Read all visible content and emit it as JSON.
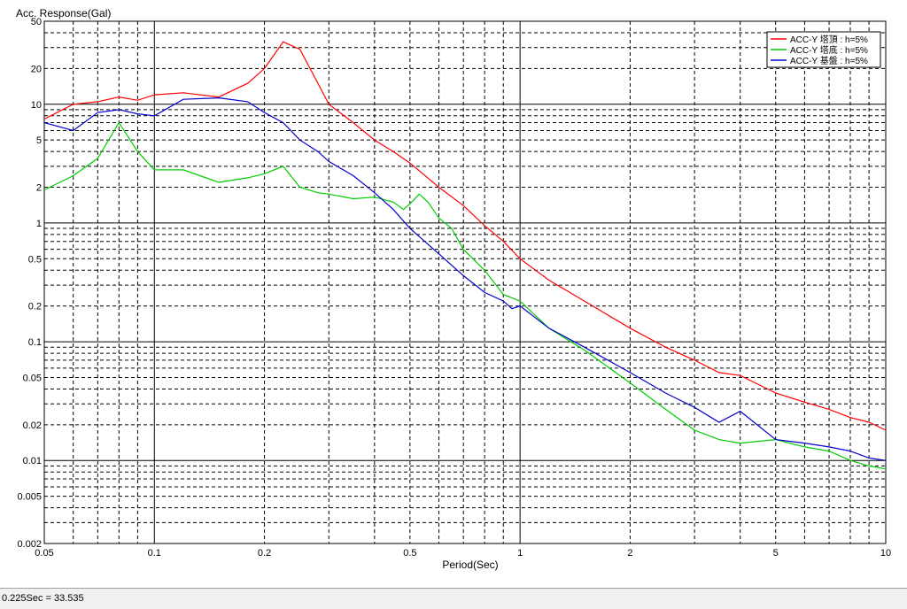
{
  "status_bar": {
    "readout": "0.225Sec = 33.535"
  },
  "chart_data": {
    "type": "line",
    "ylabel": "Acc. Response(Gal)",
    "xlabel": "Period(Sec)",
    "x_scale": "log",
    "y_scale": "log",
    "xlim": [
      0.05,
      10
    ],
    "ylim": [
      0.002,
      50
    ],
    "grid": true,
    "legend_position": "top-right",
    "x_ticks": [
      0.05,
      0.1,
      0.2,
      0.5,
      1,
      2,
      5,
      10
    ],
    "x_tick_labels": [
      "0.05",
      "0.1",
      "0.2",
      "0.5",
      "1",
      "2",
      "5",
      "10"
    ],
    "y_ticks": [
      0.002,
      0.005,
      0.01,
      0.02,
      0.05,
      0.1,
      0.2,
      0.5,
      1,
      2,
      5,
      10,
      20,
      50
    ],
    "y_tick_labels": [
      "0.002",
      "0.005",
      "0.01",
      "0.02",
      "0.05",
      "0.1",
      "0.2",
      "0.5",
      "1",
      "2",
      "5",
      "10",
      "20",
      "50"
    ],
    "series": [
      {
        "name": "ACC-Y 塔頂 : h=5%",
        "color": "#ff0000",
        "x": [
          0.05,
          0.06,
          0.07,
          0.08,
          0.09,
          0.1,
          0.12,
          0.15,
          0.18,
          0.2,
          0.225,
          0.25,
          0.28,
          0.3,
          0.35,
          0.4,
          0.45,
          0.5,
          0.6,
          0.7,
          0.8,
          0.9,
          1.0,
          1.2,
          1.5,
          2.0,
          2.5,
          3.0,
          3.5,
          4.0,
          5.0,
          6.0,
          7.0,
          8.0,
          9.0,
          10.0
        ],
        "y": [
          7.5,
          10,
          10.5,
          11.5,
          10.8,
          12,
          12.5,
          11.5,
          15,
          20,
          33.535,
          29,
          15,
          10,
          7,
          5,
          4,
          3.2,
          2.0,
          1.4,
          0.95,
          0.7,
          0.5,
          0.33,
          0.22,
          0.13,
          0.09,
          0.07,
          0.055,
          0.052,
          0.037,
          0.031,
          0.027,
          0.023,
          0.021,
          0.018
        ]
      },
      {
        "name": "ACC-Y 塔底 : h=5%",
        "color": "#00cc00",
        "x": [
          0.05,
          0.06,
          0.07,
          0.08,
          0.09,
          0.1,
          0.12,
          0.15,
          0.18,
          0.2,
          0.225,
          0.25,
          0.28,
          0.3,
          0.35,
          0.4,
          0.45,
          0.48,
          0.5,
          0.53,
          0.56,
          0.6,
          0.65,
          0.7,
          0.8,
          0.9,
          1.0,
          1.2,
          1.5,
          2.0,
          2.5,
          3.0,
          3.5,
          4.0,
          5.0,
          6.0,
          7.0,
          8.0,
          9.0,
          10.0
        ],
        "y": [
          1.9,
          2.5,
          3.5,
          7.0,
          4.0,
          2.8,
          2.8,
          2.2,
          2.4,
          2.6,
          3.0,
          2.0,
          1.8,
          1.75,
          1.6,
          1.65,
          1.5,
          1.3,
          1.45,
          1.75,
          1.5,
          1.1,
          0.9,
          0.6,
          0.4,
          0.25,
          0.22,
          0.13,
          0.085,
          0.045,
          0.027,
          0.018,
          0.015,
          0.014,
          0.015,
          0.013,
          0.012,
          0.01,
          0.009,
          0.0085
        ]
      },
      {
        "name": "ACC-Y 基盤 : h=5%",
        "color": "#0000cc",
        "x": [
          0.05,
          0.06,
          0.07,
          0.08,
          0.09,
          0.1,
          0.12,
          0.15,
          0.18,
          0.2,
          0.225,
          0.25,
          0.28,
          0.3,
          0.35,
          0.4,
          0.45,
          0.5,
          0.6,
          0.7,
          0.8,
          0.9,
          0.95,
          1.0,
          1.2,
          1.5,
          2.0,
          2.5,
          3.0,
          3.5,
          4.0,
          5.0,
          6.0,
          7.0,
          8.0,
          9.0,
          10.0
        ],
        "y": [
          7.0,
          6.0,
          8.5,
          9.0,
          8.3,
          8.0,
          11,
          11.3,
          10.5,
          8.5,
          7.0,
          5.0,
          4.0,
          3.3,
          2.5,
          1.8,
          1.3,
          0.9,
          0.55,
          0.36,
          0.26,
          0.22,
          0.19,
          0.2,
          0.13,
          0.09,
          0.055,
          0.037,
          0.028,
          0.021,
          0.026,
          0.015,
          0.014,
          0.013,
          0.012,
          0.0105,
          0.01
        ]
      }
    ]
  }
}
